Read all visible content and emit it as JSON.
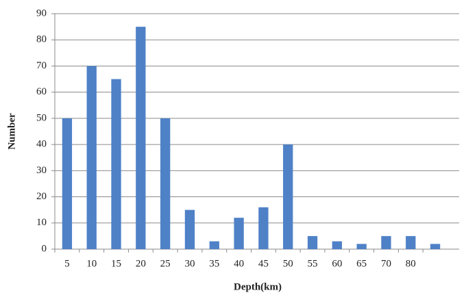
{
  "chart_data": {
    "type": "bar",
    "x_label": "Depth(km)",
    "y_label": "Number",
    "categories": [
      "5",
      "10",
      "15",
      "20",
      "25",
      "30",
      "35",
      "40",
      "45",
      "50",
      "55",
      "60",
      "65",
      "70",
      "80",
      null
    ],
    "values": [
      50,
      70,
      65,
      85,
      50,
      15,
      3,
      12,
      16,
      40,
      5,
      3,
      2,
      5,
      5,
      2
    ],
    "color": "#4f81c7",
    "ylim": [
      0,
      90
    ],
    "yticks": [
      0,
      10,
      20,
      30,
      40,
      50,
      60,
      70,
      80,
      90
    ],
    "grid": true
  }
}
